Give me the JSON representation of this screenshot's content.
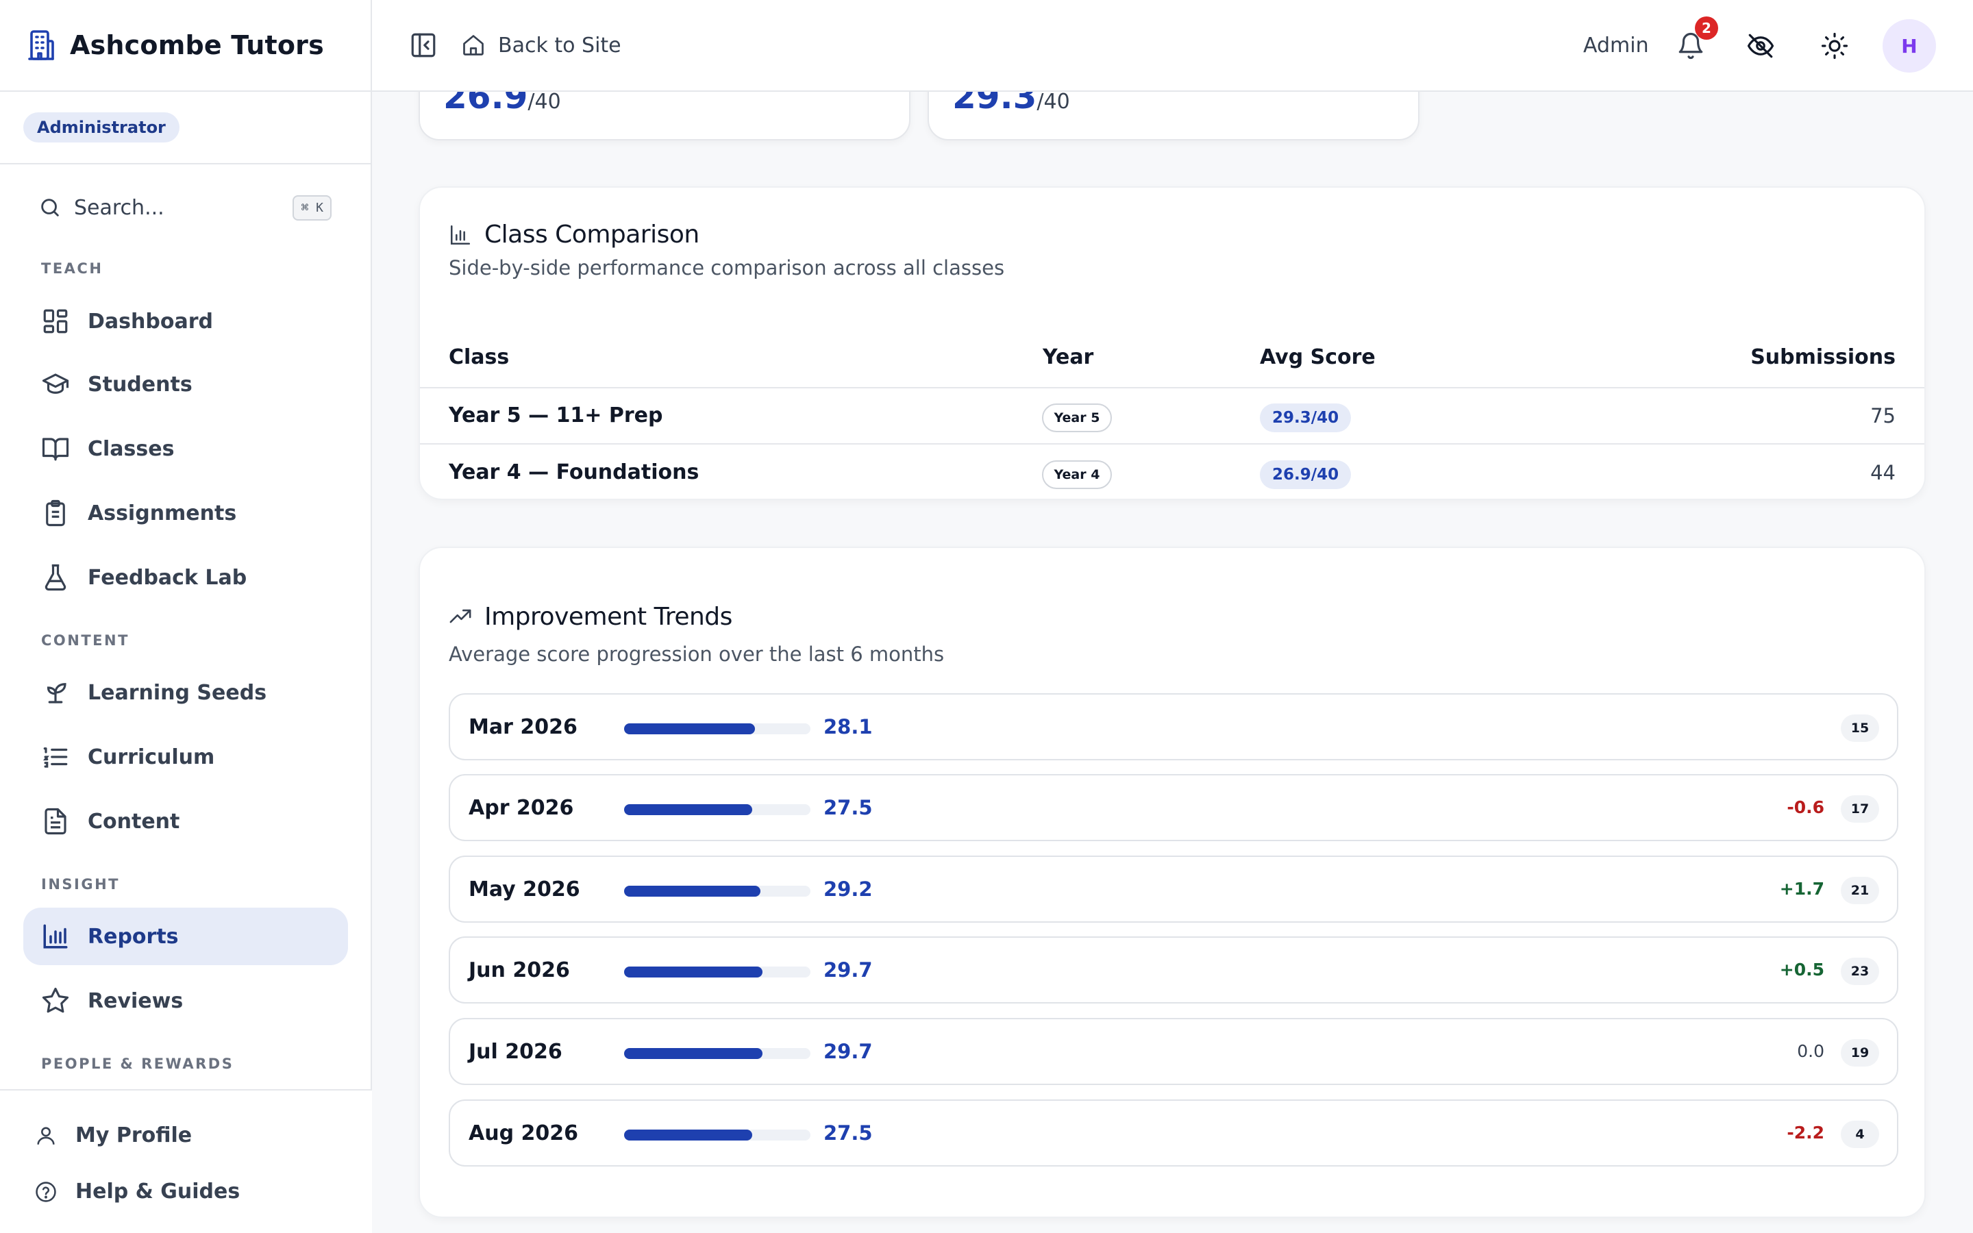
{
  "app": {
    "brand": "Ashcombe Tutors",
    "role": "Administrator"
  },
  "search": {
    "label": "Search...",
    "shortcut": "⌘ K"
  },
  "sidebar": {
    "sections": {
      "teach": "TEACH",
      "content": "CONTENT",
      "insight": "INSIGHT",
      "people": "PEOPLE & REWARDS"
    },
    "items": [
      {
        "label": "Dashboard",
        "icon": "dashboard-icon"
      },
      {
        "label": "Students",
        "icon": "graduation-cap-icon"
      },
      {
        "label": "Classes",
        "icon": "book-open-icon"
      },
      {
        "label": "Assignments",
        "icon": "clipboard-icon"
      },
      {
        "label": "Feedback Lab",
        "icon": "flask-icon"
      },
      {
        "label": "Learning Seeds",
        "icon": "sprout-icon"
      },
      {
        "label": "Curriculum",
        "icon": "list-icon"
      },
      {
        "label": "Content",
        "icon": "file-text-icon"
      },
      {
        "label": "Reports",
        "icon": "bar-chart-icon",
        "active": true
      },
      {
        "label": "Reviews",
        "icon": "star-icon"
      }
    ],
    "footer": [
      {
        "label": "My Profile",
        "icon": "user-icon"
      },
      {
        "label": "Help & Guides",
        "icon": "help-circle-icon"
      }
    ]
  },
  "topbar": {
    "back_label": "Back to Site",
    "user_label": "Admin",
    "notification_count": "2",
    "avatar_initial": "H"
  },
  "stats": [
    {
      "value": "26.9",
      "suffix": "/40"
    },
    {
      "value": "29.3",
      "suffix": "/40"
    }
  ],
  "class_comparison": {
    "title": "Class Comparison",
    "subtitle": "Side-by-side performance comparison across all classes",
    "headers": {
      "class": "Class",
      "year": "Year",
      "avg": "Avg Score",
      "submissions": "Submissions"
    },
    "rows": [
      {
        "class": "Year 5 — 11+ Prep",
        "year": "Year 5",
        "avg": "29.3/40",
        "submissions": "75"
      },
      {
        "class": "Year 4 — Foundations",
        "year": "Year 4",
        "avg": "26.9/40",
        "submissions": "44"
      }
    ]
  },
  "trends": {
    "title": "Improvement Trends",
    "subtitle": "Average score progression over the last 6 months",
    "max": 40,
    "rows": [
      {
        "month": "Mar 2026",
        "score": "28.1",
        "value": 28.1,
        "delta": "",
        "count": "15"
      },
      {
        "month": "Apr 2026",
        "score": "27.5",
        "value": 27.5,
        "delta": "-0.6",
        "count": "17"
      },
      {
        "month": "May 2026",
        "score": "29.2",
        "value": 29.2,
        "delta": "+1.7",
        "count": "21"
      },
      {
        "month": "Jun 2026",
        "score": "29.7",
        "value": 29.7,
        "delta": "+0.5",
        "count": "23"
      },
      {
        "month": "Jul 2026",
        "score": "29.7",
        "value": 29.7,
        "delta": "0.0",
        "count": "19"
      },
      {
        "month": "Aug 2026",
        "score": "27.5",
        "value": 27.5,
        "delta": "-2.2",
        "count": "4"
      }
    ]
  },
  "colors": {
    "accent": "#1e40af",
    "positive": "#166534",
    "negative": "#b91c1c",
    "neutral": "#374151"
  }
}
